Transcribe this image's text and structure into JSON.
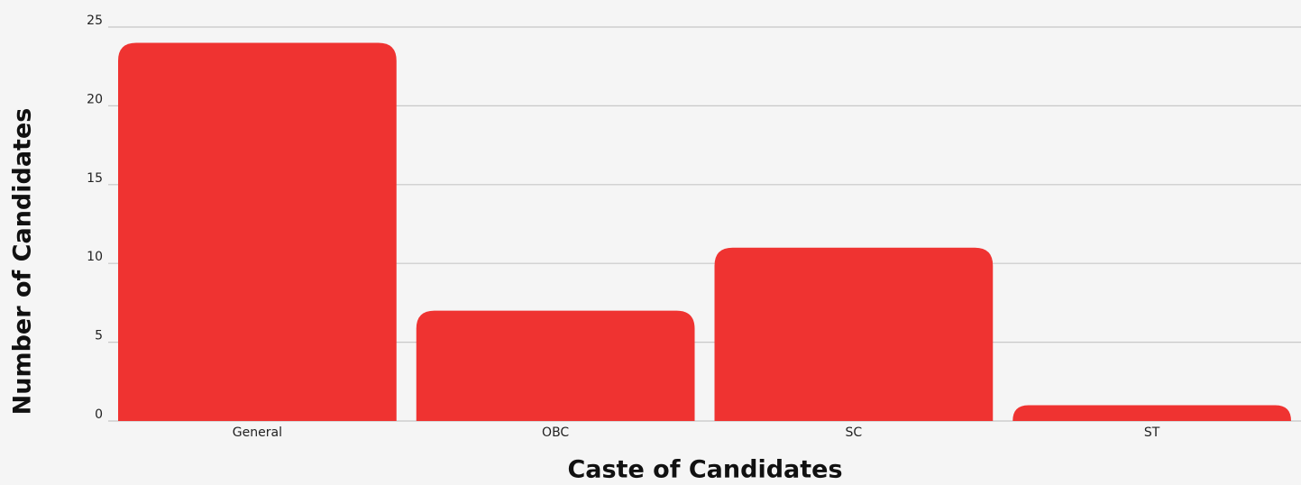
{
  "chart_data": {
    "type": "bar",
    "x_label": "Caste of Candidates",
    "y_label": "Number of Candidates",
    "categories": [
      "General",
      "OBC",
      "SC",
      "ST"
    ],
    "values": [
      24,
      7,
      11,
      1
    ],
    "color": "#ef3331",
    "ylim": [
      0,
      25
    ],
    "yticks": [
      0,
      5,
      10,
      15,
      20,
      25
    ],
    "grid": true
  }
}
